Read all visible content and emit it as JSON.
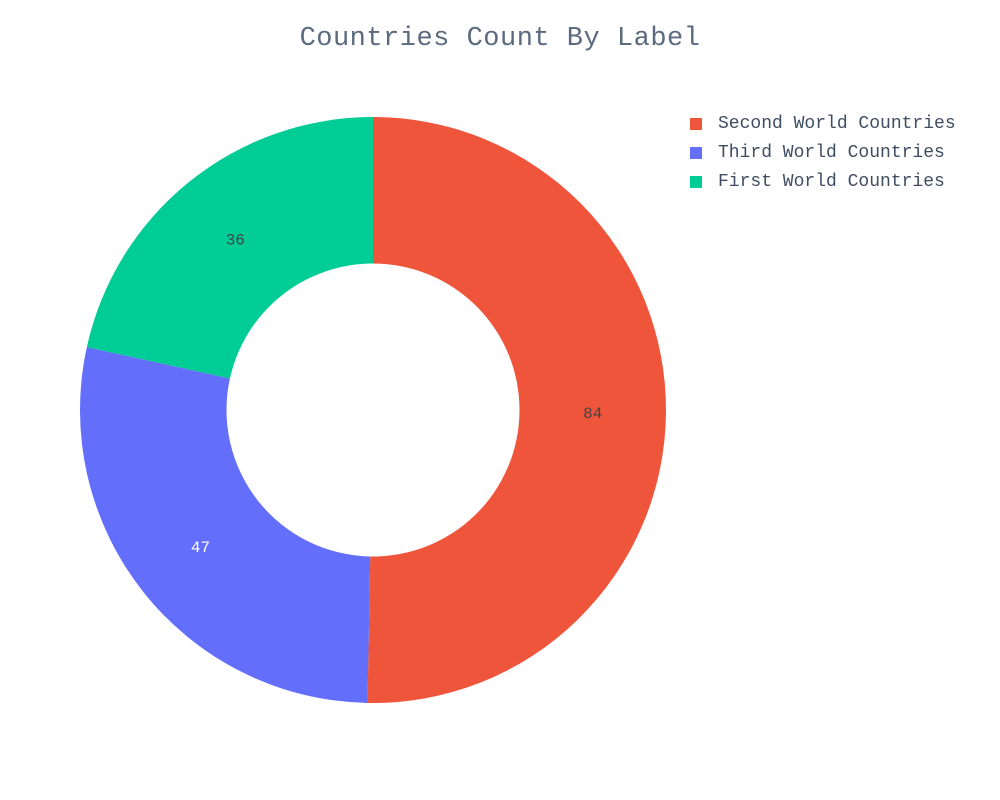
{
  "chart_data": {
    "type": "pie",
    "title": "Countries Count By Label",
    "hole": 0.5,
    "legend_position": "top-right",
    "slices": [
      {
        "label": "Second World Countries",
        "value": 84,
        "color": "#ef553b"
      },
      {
        "label": "Third World Countries",
        "value": 47,
        "color": "#636efa"
      },
      {
        "label": "First World Countries",
        "value": 36,
        "color": "#00cc96"
      }
    ],
    "label_colors": {
      "Second World Countries": "#444444",
      "Third World Countries": "#ffffff",
      "First World Countries": "#444444"
    }
  }
}
